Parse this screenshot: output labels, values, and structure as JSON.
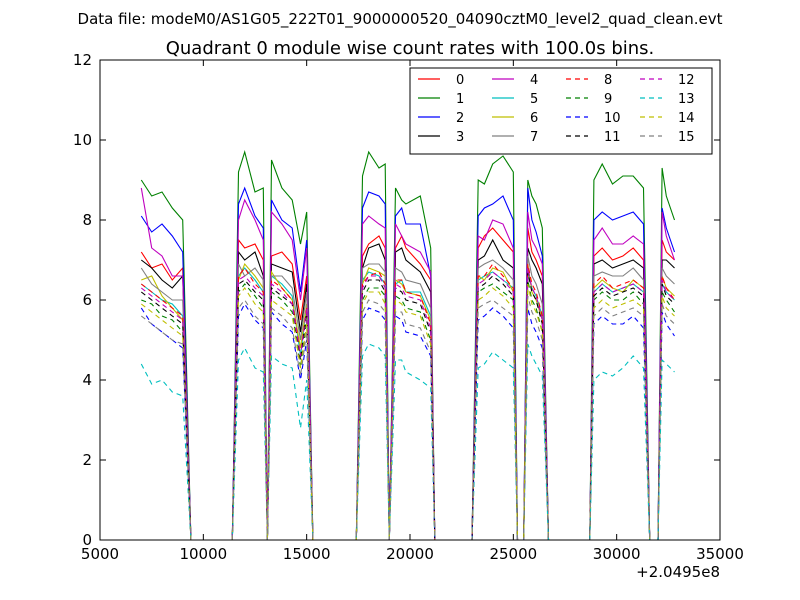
{
  "suptitle": "Data file: modeM0/AS1G05_222T01_9000000520_04090cztM0_level2_quad_clean.evt",
  "chart_data": {
    "type": "line",
    "title": "Quadrant 0 module wise count rates with 100.0s bins.",
    "xlabel": "",
    "ylabel": "",
    "x_offset_label": "+2.0495e8",
    "xlim": [
      5000,
      35000
    ],
    "ylim": [
      0,
      12
    ],
    "xticks": [
      5000,
      10000,
      15000,
      20000,
      25000,
      30000,
      35000
    ],
    "yticks": [
      0,
      2,
      4,
      6,
      8,
      10,
      12
    ],
    "grid": false,
    "legend_position": "top-right",
    "legend_columns": 4,
    "x": [
      7000,
      7500,
      8000,
      8500,
      9000,
      9400,
      9600,
      10000,
      11400,
      11700,
      12000,
      12500,
      12900,
      13100,
      13300,
      13800,
      14300,
      14700,
      15000,
      15300,
      17400,
      17700,
      18000,
      18500,
      18800,
      19000,
      19300,
      19600,
      19800,
      20500,
      21000,
      21200,
      23000,
      23300,
      23600,
      24000,
      24500,
      25000,
      25200,
      25500,
      25700,
      25900,
      26100,
      26400,
      26700,
      27000,
      28000,
      28700,
      28900,
      29300,
      29800,
      30300,
      30800,
      31300,
      31600,
      32000,
      32200,
      32400,
      32800
    ],
    "series": [
      {
        "name": "0",
        "color": "#ff0000",
        "dash": false,
        "values": [
          7.2,
          6.8,
          6.9,
          6.5,
          6.8,
          0,
          0,
          0,
          0,
          7.5,
          7.3,
          7.4,
          7.0,
          0,
          7.1,
          7.2,
          6.9,
          5.5,
          6.6,
          0,
          0,
          7.1,
          7.4,
          7.6,
          7.3,
          0,
          7.3,
          7.6,
          7.3,
          6.9,
          6.5,
          0,
          0,
          7.3,
          7.6,
          7.8,
          7.5,
          7.2,
          0,
          0,
          7.8,
          7.2,
          7.0,
          6.6,
          0,
          0,
          0,
          0,
          7.1,
          7.3,
          7.0,
          7.1,
          7.3,
          7.0,
          0,
          0,
          7.5,
          7.2,
          7.0
        ]
      },
      {
        "name": "1",
        "color": "#008000",
        "dash": false,
        "values": [
          9.0,
          8.6,
          8.7,
          8.3,
          8.0,
          0,
          0,
          0,
          0,
          9.2,
          9.7,
          8.7,
          8.8,
          0,
          9.5,
          8.8,
          8.5,
          7.4,
          8.2,
          0,
          0,
          9.1,
          9.7,
          9.3,
          9.4,
          0,
          8.8,
          8.5,
          8.4,
          8.6,
          7.3,
          0,
          0,
          9.0,
          8.9,
          9.4,
          9.6,
          9.2,
          0,
          0,
          9.0,
          8.6,
          8.4,
          7.8,
          0,
          0,
          0,
          0,
          9.0,
          9.4,
          8.9,
          9.1,
          9.1,
          8.8,
          0,
          0,
          9.3,
          8.6,
          8.0
        ]
      },
      {
        "name": "2",
        "color": "#0000ff",
        "dash": false,
        "values": [
          8.1,
          7.7,
          7.9,
          7.6,
          7.2,
          0,
          0,
          0,
          0,
          8.4,
          8.8,
          8.1,
          7.8,
          0,
          8.5,
          8.0,
          7.8,
          6.2,
          7.5,
          0,
          0,
          8.3,
          8.7,
          8.6,
          8.4,
          0,
          8.1,
          8.3,
          7.9,
          7.9,
          6.6,
          0,
          0,
          8.1,
          8.3,
          8.4,
          8.6,
          8.0,
          0,
          0,
          8.8,
          8.0,
          7.7,
          7.1,
          0,
          0,
          0,
          0,
          8.0,
          8.2,
          8.0,
          8.1,
          8.2,
          7.9,
          0,
          0,
          8.3,
          7.8,
          7.2
        ]
      },
      {
        "name": "3",
        "color": "#000000",
        "dash": false,
        "values": [
          7.0,
          6.8,
          6.5,
          6.3,
          6.6,
          0,
          0,
          0,
          0,
          7.2,
          7.0,
          7.2,
          6.6,
          0,
          6.9,
          6.8,
          6.7,
          5.2,
          6.4,
          0,
          0,
          6.8,
          7.3,
          7.4,
          7.0,
          0,
          7.2,
          7.3,
          7.0,
          6.7,
          6.2,
          0,
          0,
          7.0,
          7.1,
          7.5,
          7.0,
          6.8,
          0,
          0,
          7.3,
          7.0,
          6.8,
          6.4,
          0,
          0,
          0,
          0,
          6.9,
          7.0,
          6.8,
          6.9,
          7.0,
          6.8,
          0,
          0,
          7.0,
          7.0,
          6.8
        ]
      },
      {
        "name": "4",
        "color": "#bf00bf",
        "dash": false,
        "values": [
          8.8,
          7.3,
          7.1,
          6.6,
          6.6,
          0,
          0,
          0,
          0,
          8.0,
          8.5,
          8.0,
          7.5,
          0,
          8.2,
          7.9,
          7.5,
          6.0,
          7.3,
          0,
          0,
          7.9,
          8.1,
          7.9,
          7.8,
          0,
          7.9,
          7.6,
          7.4,
          7.2,
          6.7,
          0,
          0,
          7.6,
          7.5,
          8.0,
          7.9,
          7.3,
          0,
          0,
          8.2,
          7.5,
          7.3,
          6.9,
          0,
          0,
          0,
          0,
          7.5,
          7.8,
          7.4,
          7.4,
          7.6,
          7.4,
          0,
          0,
          8.2,
          7.6,
          7.0
        ]
      },
      {
        "name": "5",
        "color": "#00bfbf",
        "dash": false,
        "values": [
          6.4,
          6.2,
          6.0,
          5.9,
          5.6,
          0,
          0,
          0,
          0,
          6.6,
          6.8,
          6.5,
          6.2,
          0,
          6.6,
          6.4,
          6.1,
          4.6,
          5.9,
          0,
          0,
          6.5,
          6.7,
          6.6,
          6.4,
          0,
          6.4,
          6.5,
          6.2,
          6.2,
          5.6,
          0,
          0,
          6.5,
          6.6,
          6.7,
          6.5,
          6.3,
          0,
          0,
          6.7,
          6.3,
          6.1,
          5.6,
          0,
          0,
          0,
          0,
          6.2,
          6.4,
          6.2,
          6.3,
          6.4,
          6.2,
          0,
          0,
          6.4,
          6.2,
          6.0
        ]
      },
      {
        "name": "6",
        "color": "#bfbf00",
        "dash": false,
        "values": [
          6.5,
          6.6,
          6.1,
          5.8,
          5.5,
          0,
          0,
          0,
          0,
          6.5,
          6.9,
          6.6,
          6.3,
          0,
          6.7,
          6.3,
          6.0,
          4.8,
          5.9,
          0,
          0,
          6.4,
          6.8,
          6.7,
          6.6,
          0,
          6.5,
          6.4,
          6.2,
          6.1,
          5.5,
          0,
          0,
          6.6,
          6.5,
          6.8,
          6.7,
          6.2,
          0,
          0,
          6.9,
          6.2,
          6.0,
          5.5,
          0,
          0,
          0,
          0,
          6.3,
          6.5,
          6.3,
          6.2,
          6.5,
          6.3,
          0,
          0,
          6.6,
          6.3,
          6.1
        ]
      },
      {
        "name": "7",
        "color": "#808080",
        "dash": false,
        "values": [
          6.8,
          6.4,
          6.2,
          6.0,
          6.0,
          0,
          0,
          0,
          0,
          6.9,
          6.6,
          6.8,
          6.5,
          0,
          6.6,
          6.6,
          6.3,
          5.0,
          6.2,
          0,
          0,
          6.8,
          6.9,
          6.9,
          6.7,
          0,
          6.8,
          6.7,
          6.5,
          6.4,
          5.8,
          0,
          0,
          6.8,
          6.9,
          7.0,
          6.8,
          6.5,
          0,
          0,
          7.1,
          6.6,
          6.4,
          5.9,
          0,
          0,
          0,
          0,
          6.6,
          6.7,
          6.6,
          6.6,
          6.8,
          6.5,
          0,
          0,
          6.8,
          6.6,
          6.4
        ]
      },
      {
        "name": "8",
        "color": "#ff0000",
        "dash": true,
        "values": [
          6.4,
          6.2,
          6.0,
          5.8,
          5.6,
          0,
          0,
          0,
          0,
          6.6,
          6.8,
          6.4,
          6.2,
          0,
          6.5,
          6.3,
          6.0,
          4.6,
          5.8,
          0,
          0,
          6.4,
          6.6,
          6.7,
          6.4,
          0,
          6.5,
          6.5,
          6.2,
          6.1,
          5.4,
          0,
          0,
          6.6,
          6.6,
          6.9,
          6.6,
          6.3,
          0,
          0,
          6.9,
          6.4,
          6.2,
          5.6,
          0,
          0,
          0,
          0,
          6.4,
          6.6,
          6.3,
          6.4,
          6.5,
          6.3,
          0,
          0,
          6.6,
          6.3,
          6.0
        ]
      },
      {
        "name": "9",
        "color": "#008000",
        "dash": true,
        "values": [
          6.0,
          5.9,
          5.6,
          5.5,
          5.2,
          0,
          0,
          0,
          0,
          6.2,
          6.4,
          6.1,
          5.8,
          0,
          6.2,
          6.0,
          5.7,
          4.3,
          5.5,
          0,
          0,
          6.0,
          6.3,
          6.3,
          6.1,
          0,
          6.1,
          6.0,
          5.8,
          5.7,
          5.0,
          0,
          0,
          6.2,
          6.3,
          6.4,
          6.2,
          6.0,
          0,
          0,
          6.5,
          6.0,
          5.8,
          5.2,
          0,
          0,
          0,
          0,
          6.0,
          6.2,
          6.0,
          6.0,
          6.2,
          5.9,
          0,
          0,
          6.2,
          6.0,
          5.7
        ]
      },
      {
        "name": "10",
        "color": "#0000ff",
        "dash": true,
        "values": [
          5.8,
          5.4,
          5.2,
          5.0,
          4.8,
          0,
          0,
          0,
          0,
          5.6,
          5.9,
          5.5,
          5.3,
          0,
          5.7,
          5.4,
          5.2,
          4.0,
          5.0,
          0,
          0,
          5.5,
          5.8,
          5.7,
          5.5,
          0,
          5.6,
          5.5,
          5.2,
          5.1,
          4.6,
          0,
          0,
          5.5,
          5.6,
          5.8,
          5.6,
          5.3,
          0,
          0,
          5.8,
          5.4,
          5.2,
          4.8,
          0,
          0,
          0,
          0,
          5.4,
          5.6,
          5.4,
          5.4,
          5.6,
          5.3,
          0,
          0,
          5.7,
          5.4,
          5.1
        ]
      },
      {
        "name": "11",
        "color": "#000000",
        "dash": true,
        "values": [
          6.2,
          6.0,
          5.8,
          5.6,
          5.4,
          0,
          0,
          0,
          0,
          6.4,
          6.5,
          6.2,
          6.0,
          0,
          6.3,
          6.1,
          5.9,
          4.5,
          5.7,
          0,
          0,
          6.2,
          6.5,
          6.5,
          6.2,
          0,
          6.3,
          6.2,
          6.0,
          5.9,
          5.2,
          0,
          0,
          6.3,
          6.4,
          6.6,
          6.4,
          6.1,
          0,
          0,
          6.7,
          6.2,
          6.0,
          5.4,
          0,
          0,
          0,
          0,
          6.1,
          6.3,
          6.1,
          6.2,
          6.3,
          6.1,
          0,
          0,
          6.4,
          6.1,
          5.9
        ]
      },
      {
        "name": "12",
        "color": "#bf00bf",
        "dash": true,
        "values": [
          6.3,
          6.1,
          5.9,
          5.7,
          5.5,
          0,
          0,
          0,
          0,
          6.5,
          6.6,
          6.3,
          6.1,
          0,
          6.4,
          6.2,
          5.9,
          4.6,
          5.8,
          0,
          0,
          6.3,
          6.6,
          6.6,
          6.3,
          0,
          6.4,
          6.3,
          6.1,
          6.0,
          5.3,
          0,
          0,
          6.4,
          6.5,
          6.7,
          6.5,
          6.2,
          0,
          0,
          6.8,
          6.3,
          6.1,
          5.5,
          0,
          0,
          0,
          0,
          6.2,
          6.4,
          6.2,
          6.3,
          6.4,
          6.2,
          0,
          0,
          6.5,
          6.2,
          6.0
        ]
      },
      {
        "name": "13",
        "color": "#00bfbf",
        "dash": true,
        "values": [
          4.4,
          3.9,
          4.0,
          3.7,
          3.6,
          0,
          0,
          0,
          0,
          4.5,
          4.8,
          4.3,
          4.2,
          0,
          4.6,
          4.4,
          4.3,
          2.8,
          4.0,
          0,
          0,
          4.6,
          4.9,
          4.8,
          4.6,
          0,
          4.5,
          4.5,
          4.2,
          4.0,
          3.8,
          0,
          0,
          4.3,
          4.4,
          4.7,
          4.5,
          4.3,
          0,
          0,
          4.9,
          4.6,
          4.4,
          4.1,
          0,
          0,
          0,
          0,
          4.0,
          4.2,
          4.1,
          4.3,
          4.6,
          4.3,
          0,
          0,
          4.5,
          4.4,
          4.2
        ]
      },
      {
        "name": "14",
        "color": "#bfbf00",
        "dash": true,
        "values": [
          5.9,
          5.7,
          5.5,
          5.3,
          5.1,
          0,
          0,
          0,
          0,
          6.1,
          6.3,
          5.9,
          5.7,
          0,
          6.0,
          5.8,
          5.6,
          4.3,
          5.4,
          0,
          0,
          5.9,
          6.2,
          6.2,
          5.9,
          0,
          6.0,
          5.9,
          5.7,
          5.6,
          4.9,
          0,
          0,
          6.0,
          6.1,
          6.3,
          6.1,
          5.8,
          0,
          0,
          6.4,
          5.9,
          5.7,
          5.2,
          0,
          0,
          0,
          0,
          5.8,
          6.0,
          5.8,
          5.9,
          6.0,
          5.8,
          0,
          0,
          6.1,
          5.8,
          5.6
        ]
      },
      {
        "name": "15",
        "color": "#808080",
        "dash": true,
        "values": [
          5.6,
          5.4,
          5.2,
          5.0,
          4.9,
          0,
          0,
          0,
          0,
          5.8,
          6.0,
          5.6,
          5.4,
          0,
          5.8,
          5.6,
          5.3,
          4.1,
          5.2,
          0,
          0,
          5.7,
          6.0,
          5.9,
          5.7,
          0,
          5.7,
          5.7,
          5.4,
          5.3,
          4.7,
          0,
          0,
          5.8,
          5.9,
          6.0,
          5.8,
          5.6,
          0,
          0,
          6.1,
          5.7,
          5.5,
          5.0,
          0,
          0,
          0,
          0,
          5.6,
          5.8,
          5.6,
          5.7,
          5.8,
          5.6,
          0,
          0,
          5.9,
          5.6,
          5.4
        ]
      }
    ]
  }
}
